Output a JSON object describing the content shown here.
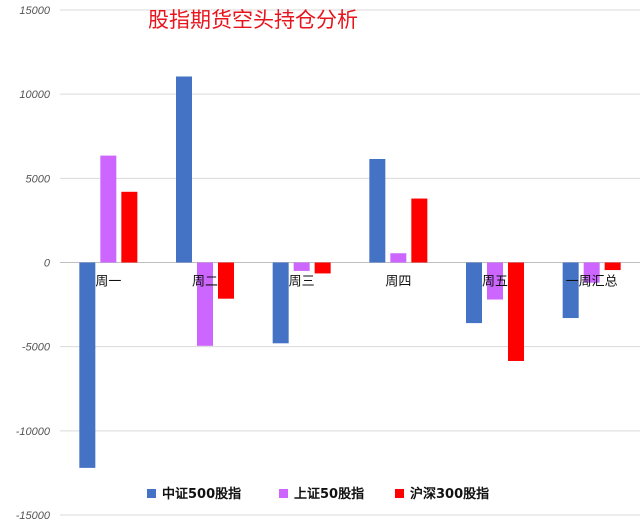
{
  "chart_data": {
    "type": "bar",
    "title": "股指期货空头持仓分析",
    "categories": [
      "周一",
      "周二",
      "周三",
      "周四",
      "周五",
      "一周汇总"
    ],
    "series": [
      {
        "name": "中证500股指",
        "color": "#4472c4",
        "values": [
          -12200,
          11050,
          -4800,
          6150,
          -3600,
          -3300
        ]
      },
      {
        "name": "上证50股指",
        "color": "#cc66ff",
        "values": [
          6350,
          -4950,
          -500,
          550,
          -2200,
          -1200
        ]
      },
      {
        "name": "沪深300股指",
        "color": "#ff0000",
        "values": [
          4200,
          -2150,
          -650,
          3800,
          -5850,
          -450
        ]
      }
    ],
    "ylim": [
      -15000,
      15000
    ],
    "yticks": [
      15000,
      10000,
      5000,
      0,
      -5000,
      -10000,
      -15000
    ],
    "ytick_labels": [
      "15000",
      "10000",
      "5000",
      "0",
      "-5000",
      "-10000",
      "-15000"
    ],
    "grid": true,
    "legend_position": "bottom"
  }
}
